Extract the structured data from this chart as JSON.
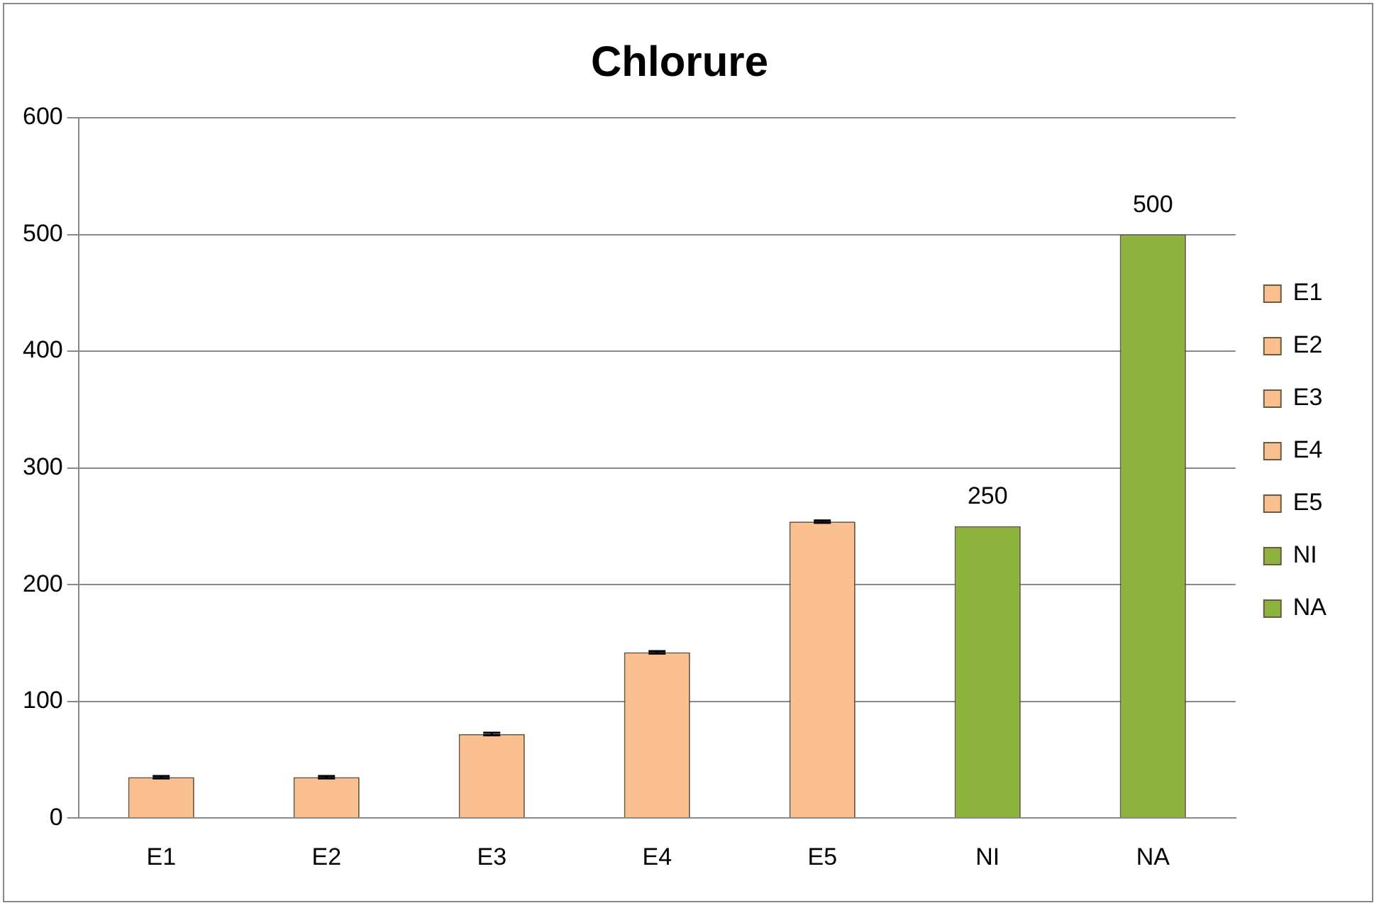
{
  "chart_data": {
    "type": "bar",
    "title": "Chlorure",
    "categories": [
      "E1",
      "E2",
      "E3",
      "E4",
      "E5",
      "NI",
      "NA"
    ],
    "series": [
      {
        "name": "E1",
        "color": "#fac090",
        "values": [
          35,
          null,
          null,
          null,
          null,
          null,
          null
        ],
        "errors": [
          1,
          null,
          null,
          null,
          null,
          null,
          null
        ]
      },
      {
        "name": "E2",
        "color": "#fac090",
        "values": [
          null,
          35,
          null,
          null,
          null,
          null,
          null
        ],
        "errors": [
          null,
          1,
          null,
          null,
          null,
          null,
          null
        ]
      },
      {
        "name": "E3",
        "color": "#fac090",
        "values": [
          null,
          null,
          72,
          null,
          null,
          null,
          null
        ],
        "errors": [
          null,
          null,
          1,
          null,
          null,
          null,
          null
        ]
      },
      {
        "name": "E4",
        "color": "#fac090",
        "values": [
          null,
          null,
          null,
          142,
          null,
          null,
          null
        ],
        "errors": [
          null,
          null,
          null,
          1,
          null,
          null,
          null
        ]
      },
      {
        "name": "E5",
        "color": "#fac090",
        "values": [
          null,
          null,
          null,
          null,
          254,
          null,
          null
        ],
        "errors": [
          null,
          null,
          null,
          null,
          1,
          null,
          null
        ]
      },
      {
        "name": "NI",
        "color": "#8cb43c",
        "values": [
          null,
          null,
          null,
          null,
          null,
          250,
          null
        ],
        "value_labels": [
          null,
          null,
          null,
          null,
          null,
          "250",
          null
        ]
      },
      {
        "name": "NA",
        "color": "#8cb43c",
        "values": [
          null,
          null,
          null,
          null,
          null,
          null,
          500
        ],
        "value_labels": [
          null,
          null,
          null,
          null,
          null,
          null,
          "500"
        ]
      }
    ],
    "ylim": [
      0,
      600
    ],
    "yticks": [
      0,
      100,
      200,
      300,
      400,
      500,
      600
    ],
    "grid": "y",
    "legend": "right"
  }
}
